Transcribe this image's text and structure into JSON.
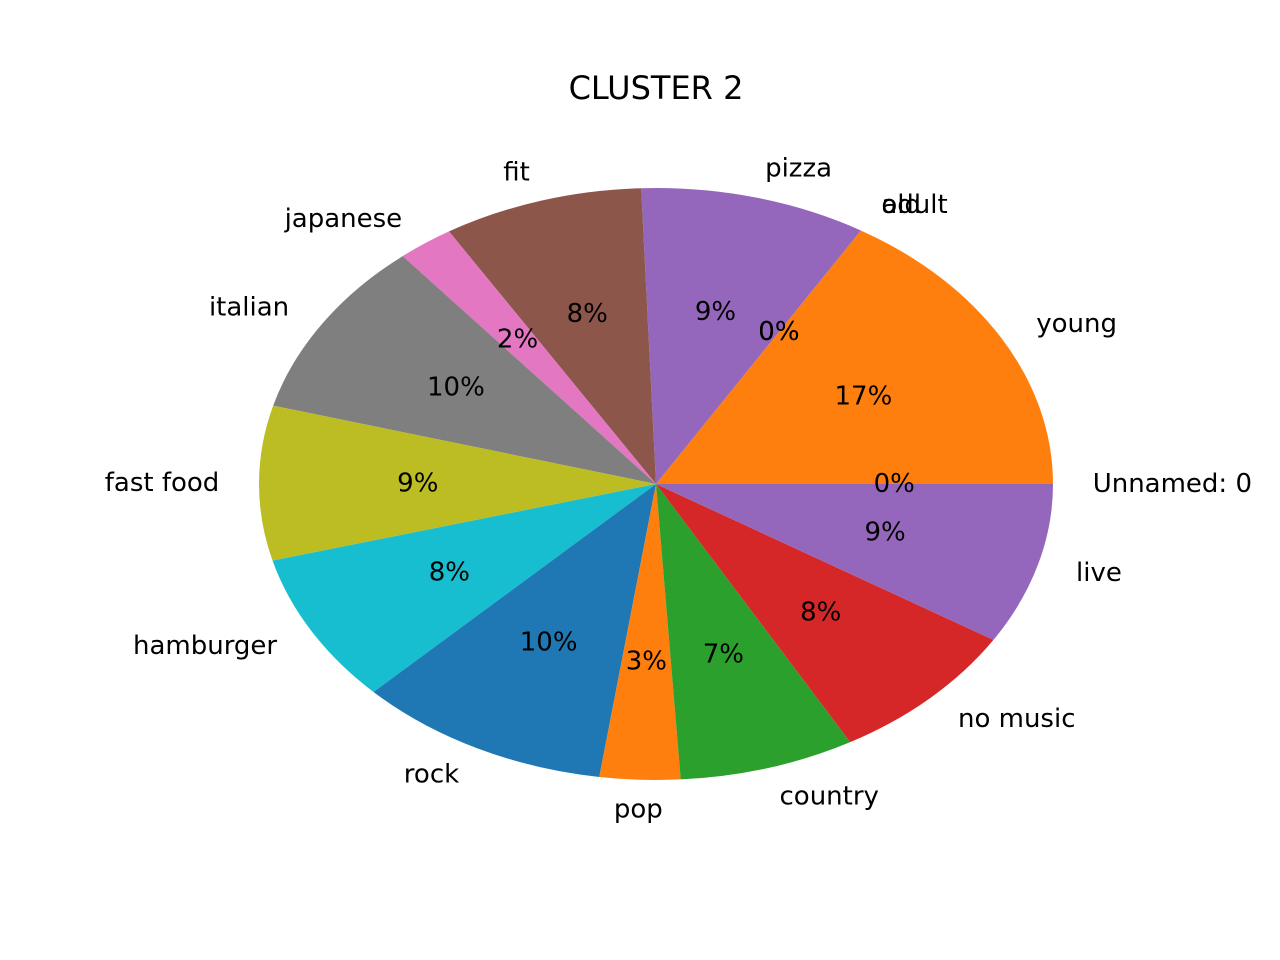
{
  "chart_data": {
    "type": "pie",
    "title": "CLUSTER 2",
    "start_angle_deg": 0,
    "direction": "counterclockwise",
    "slices": [
      {
        "label": "Unnamed: 0",
        "value": 0.0,
        "pct_text": "0%",
        "color": "#1f77b4"
      },
      {
        "label": "young",
        "value": 16.5,
        "pct_text": "17%",
        "color": "#ff7f0e"
      },
      {
        "label": "adult",
        "value": 0.0,
        "pct_text": "0%",
        "color": "#2ca02c"
      },
      {
        "label": "old",
        "value": 0.0,
        "pct_text": "0%",
        "color": "#d62728"
      },
      {
        "label": "pizza",
        "value": 9.3,
        "pct_text": "9%",
        "color": "#9467bd"
      },
      {
        "label": "fit",
        "value": 8.2,
        "pct_text": "8%",
        "color": "#8c564b"
      },
      {
        "label": "japanese",
        "value": 2.3,
        "pct_text": "2%",
        "color": "#e377c2"
      },
      {
        "label": "italian",
        "value": 9.8,
        "pct_text": "10%",
        "color": "#7f7f7f"
      },
      {
        "label": "fast food",
        "value": 8.5,
        "pct_text": "9%",
        "color": "#bcbd22"
      },
      {
        "label": "hamburger",
        "value": 8.3,
        "pct_text": "8%",
        "color": "#17becf"
      },
      {
        "label": "rock",
        "value": 10.4,
        "pct_text": "10%",
        "color": "#1f77b4"
      },
      {
        "label": "pop",
        "value": 3.3,
        "pct_text": "3%",
        "color": "#ff7f0e"
      },
      {
        "label": "country",
        "value": 7.2,
        "pct_text": "7%",
        "color": "#2ca02c"
      },
      {
        "label": "no music",
        "value": 8.1,
        "pct_text": "8%",
        "color": "#d62728"
      },
      {
        "label": "live",
        "value": 8.9,
        "pct_text": "9%",
        "color": "#9467bd"
      }
    ]
  }
}
